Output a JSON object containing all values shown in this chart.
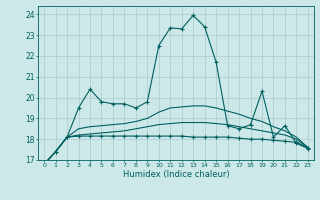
{
  "xlabel": "Humidex (Indice chaleur)",
  "bg_color": "#cce8e8",
  "grid_color": "#aacccc",
  "line_color": "#006060",
  "x_values": [
    0,
    1,
    2,
    3,
    4,
    5,
    6,
    7,
    8,
    9,
    10,
    11,
    12,
    13,
    14,
    15,
    16,
    17,
    18,
    19,
    20,
    21,
    22,
    23
  ],
  "series": [
    [
      16.8,
      17.4,
      18.1,
      18.15,
      18.15,
      18.15,
      18.15,
      18.15,
      18.15,
      18.15,
      18.15,
      18.15,
      18.15,
      18.1,
      18.1,
      18.1,
      18.1,
      18.05,
      18.0,
      18.0,
      17.95,
      17.9,
      17.85,
      17.6
    ],
    [
      16.8,
      17.4,
      18.1,
      18.2,
      18.25,
      18.3,
      18.35,
      18.4,
      18.5,
      18.6,
      18.7,
      18.75,
      18.8,
      18.8,
      18.8,
      18.75,
      18.7,
      18.6,
      18.5,
      18.4,
      18.3,
      18.2,
      18.0,
      17.6
    ],
    [
      16.8,
      17.4,
      18.1,
      18.5,
      18.6,
      18.65,
      18.7,
      18.75,
      18.85,
      19.0,
      19.3,
      19.5,
      19.55,
      19.6,
      19.6,
      19.5,
      19.35,
      19.2,
      19.0,
      18.85,
      18.6,
      18.4,
      18.1,
      17.6
    ],
    [
      16.8,
      17.4,
      18.1,
      19.5,
      20.4,
      19.8,
      19.7,
      19.7,
      19.5,
      19.8,
      22.5,
      23.35,
      23.3,
      23.95,
      23.4,
      21.7,
      18.65,
      18.5,
      18.7,
      20.3,
      18.1,
      18.65,
      17.8,
      17.55
    ]
  ],
  "markers": [
    true,
    false,
    false,
    true
  ],
  "ylim": [
    17.0,
    24.4
  ],
  "yticks": [
    17,
    18,
    19,
    20,
    21,
    22,
    23,
    24
  ],
  "xlim": [
    -0.5,
    23.5
  ],
  "figsize": [
    3.2,
    2.0
  ],
  "dpi": 100
}
